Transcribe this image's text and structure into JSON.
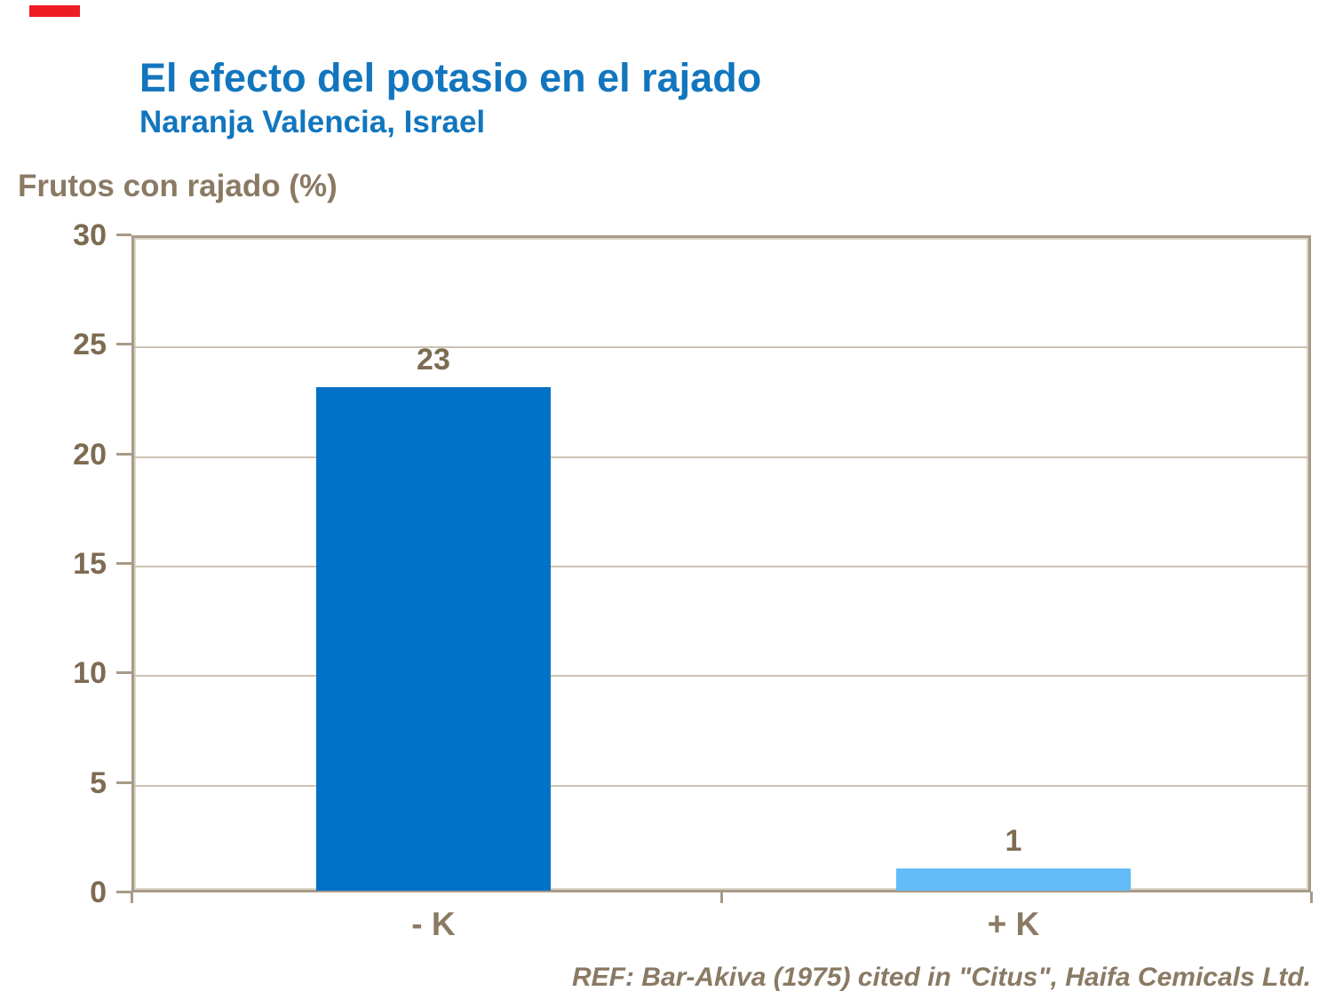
{
  "header": {
    "title": "El efecto del potasio en el rajado",
    "subtitle": "Naranja Valencia, Israel"
  },
  "chart_data": {
    "type": "bar",
    "title": "El efecto del potasio en el rajado",
    "subtitle": "Naranja Valencia, Israel",
    "ylabel": "Frutos con rajado (%)",
    "xlabel": "",
    "categories": [
      "- K",
      "+ K"
    ],
    "values": [
      23,
      1
    ],
    "value_labels": [
      "23",
      "1"
    ],
    "ylim": [
      0,
      30
    ],
    "yticks": [
      0,
      5,
      10,
      15,
      20,
      25,
      30
    ],
    "grid": true,
    "legend_position": "none",
    "bar_colors": [
      "#0071c6",
      "#63bcf7"
    ]
  },
  "footer": {
    "reference": "REF: Bar-Akiva (1975) cited in \"Citus\", Haifa Cemicals Ltd."
  },
  "colors": {
    "title_blue": "#1276be",
    "text_brown": "#8a7a64",
    "tick_brown": "#7d6b52",
    "grid_tan": "#ccc2b2",
    "frame_tan": "#a89a88",
    "bar_minus_k": "#0071c6",
    "bar_plus_k": "#63bcf7",
    "accent_red": "#ee1c24"
  }
}
